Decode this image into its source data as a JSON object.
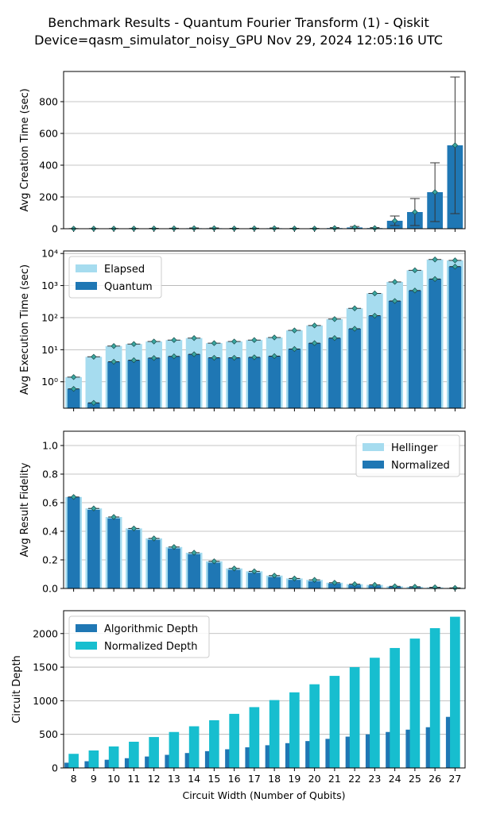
{
  "title_line1": "Benchmark Results - Quantum Fourier Transform (1) - Qiskit",
  "title_line2": "Device=qasm_simulator_noisy_GPU  Nov 29, 2024 12:05:16 UTC",
  "xlabel": "Circuit Width (Number of Qubits)",
  "colors": {
    "dark": "#1f77b4",
    "light": "#a6dcef",
    "cyan": "#17becf",
    "marker": "#3aa7a0"
  },
  "chart_data": [
    {
      "type": "bar",
      "id": "creation",
      "ylabel": "Avg Creation Time (sec)",
      "ylim": [
        0,
        990
      ],
      "yticks": [
        0,
        200,
        400,
        600,
        800
      ],
      "grid": true,
      "categories": [
        8,
        9,
        10,
        11,
        12,
        13,
        14,
        15,
        16,
        17,
        18,
        19,
        20,
        21,
        22,
        23,
        24,
        25,
        26,
        27
      ],
      "series": [
        {
          "values": [
            0.5,
            0.6,
            0.8,
            1.0,
            1.5,
            2,
            3,
            3,
            1.5,
            2,
            3,
            1.5,
            1,
            4,
            8,
            4,
            50,
            105,
            230,
            525
          ],
          "error": [
            0.5,
            0.5,
            0.5,
            0.5,
            1,
            1,
            2,
            2,
            1,
            1,
            2,
            1,
            1,
            3,
            6,
            3,
            30,
            85,
            185,
            430
          ]
        }
      ]
    },
    {
      "type": "bar",
      "id": "execution",
      "ylabel": "Avg Execution Time (sec)",
      "scale": "log",
      "ylim": [
        0.15,
        12000
      ],
      "yticks": [
        1,
        10,
        100,
        1000,
        10000
      ],
      "ytick_labels": [
        "10⁰",
        "10¹",
        "10²",
        "10³",
        "10⁴"
      ],
      "grid": true,
      "legend_position": "top-left",
      "categories": [
        8,
        9,
        10,
        11,
        12,
        13,
        14,
        15,
        16,
        17,
        18,
        19,
        20,
        21,
        22,
        23,
        24,
        25,
        26,
        27
      ],
      "series": [
        {
          "name": "Elapsed",
          "values": [
            1.4,
            6,
            13,
            15,
            18,
            20,
            23,
            16,
            18,
            20,
            24,
            40,
            57,
            90,
            195,
            570,
            1300,
            3000,
            6500,
            6100
          ]
        },
        {
          "name": "Quantum",
          "values": [
            0.6,
            0.22,
            4.2,
            4.7,
            5.5,
            6.2,
            7.2,
            5.6,
            5.6,
            5.8,
            6.3,
            10.5,
            16,
            23,
            45,
            115,
            330,
            700,
            1600,
            3900
          ]
        }
      ]
    },
    {
      "type": "bar",
      "id": "fidelity",
      "ylabel": "Avg Result Fidelity",
      "ylim": [
        0,
        1.1
      ],
      "yticks": [
        0,
        0.2,
        0.4,
        0.6,
        0.8,
        1.0
      ],
      "ytick_labels": [
        "0.0",
        "0.2",
        "0.4",
        "0.6",
        "0.8",
        "1.0"
      ],
      "grid": true,
      "legend_position": "top-right",
      "categories": [
        8,
        9,
        10,
        11,
        12,
        13,
        14,
        15,
        16,
        17,
        18,
        19,
        20,
        21,
        22,
        23,
        24,
        25,
        26,
        27
      ],
      "series": [
        {
          "name": "Hellinger",
          "values": [
            0.64,
            0.56,
            0.5,
            0.42,
            0.35,
            0.29,
            0.25,
            0.19,
            0.14,
            0.12,
            0.09,
            0.07,
            0.06,
            0.04,
            0.03,
            0.025,
            0.015,
            0.012,
            0.008,
            0.004
          ]
        },
        {
          "name": "Normalized",
          "values": [
            0.64,
            0.55,
            0.49,
            0.41,
            0.34,
            0.28,
            0.24,
            0.18,
            0.13,
            0.11,
            0.08,
            0.06,
            0.05,
            0.035,
            0.025,
            0.02,
            0.012,
            0.008,
            0.004,
            0.0
          ]
        }
      ]
    },
    {
      "type": "bar",
      "id": "depth",
      "ylabel": "Circuit Depth",
      "xlabel": "Circuit Width (Number of Qubits)",
      "ylim": [
        0,
        2340
      ],
      "yticks": [
        0,
        500,
        1000,
        1500,
        2000
      ],
      "grid": true,
      "legend_position": "top-left",
      "categories": [
        8,
        9,
        10,
        11,
        12,
        13,
        14,
        15,
        16,
        17,
        18,
        19,
        20,
        21,
        22,
        23,
        24,
        25,
        26,
        27
      ],
      "series": [
        {
          "name": "Algorithmic Depth",
          "values": [
            78,
            100,
            122,
            145,
            170,
            195,
            222,
            250,
            278,
            307,
            338,
            369,
            400,
            433,
            466,
            500,
            535,
            570,
            606,
            760
          ]
        },
        {
          "name": "Normalized Depth",
          "values": [
            210,
            260,
            320,
            390,
            460,
            535,
            620,
            710,
            805,
            905,
            1010,
            1125,
            1245,
            1370,
            1500,
            1640,
            1785,
            1925,
            2080,
            2250
          ]
        }
      ]
    }
  ]
}
